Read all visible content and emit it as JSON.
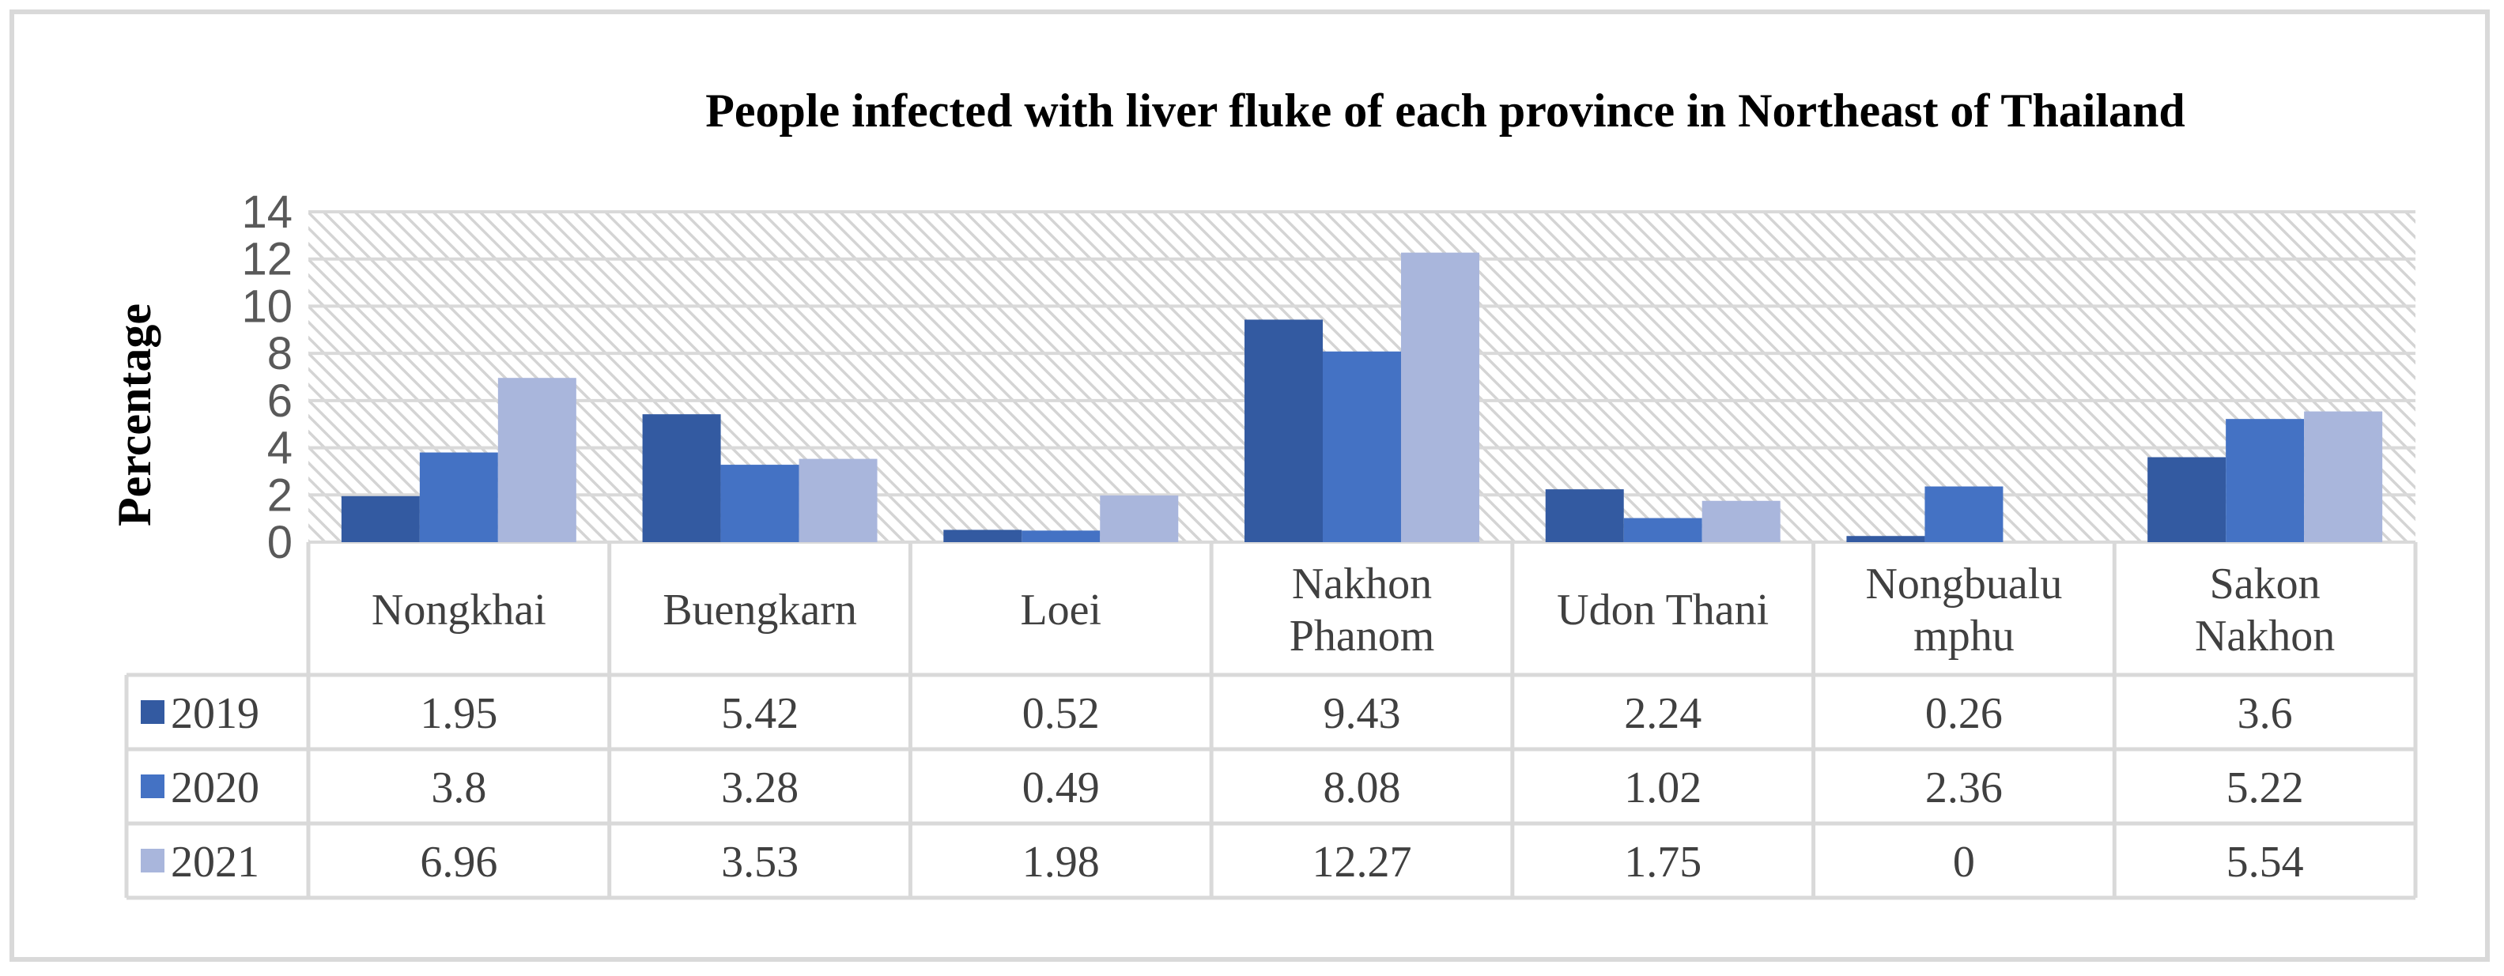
{
  "chart_data": {
    "type": "bar",
    "title": "People infected with liver fluke of each province in Northeast of Thailand",
    "ylabel": "Percentage",
    "xlabel": "",
    "ylim": [
      0,
      14
    ],
    "yticks": [
      "0",
      "2",
      "4",
      "6",
      "8",
      "10",
      "12",
      "14"
    ],
    "grid": true,
    "legend": "data-table",
    "categories": [
      [
        "Nongkhai"
      ],
      [
        "Buengkarn"
      ],
      [
        "Loei"
      ],
      [
        "Nakhon",
        "Phanom"
      ],
      [
        "Udon Thani"
      ],
      [
        "Nongbualu",
        "mphu"
      ],
      [
        "Sakon",
        "Nakhon"
      ]
    ],
    "series": [
      {
        "name": "2019",
        "color": "#335aa1",
        "values": [
          1.95,
          5.42,
          0.52,
          9.43,
          2.24,
          0.26,
          3.6
        ],
        "labels": [
          "1.95",
          "5.42",
          "0.52",
          "9.43",
          "2.24",
          "0.26",
          "3.6"
        ]
      },
      {
        "name": "2020",
        "color": "#4472c4",
        "values": [
          3.8,
          3.28,
          0.49,
          8.08,
          1.02,
          2.36,
          5.22
        ],
        "labels": [
          "3.8",
          "3.28",
          "0.49",
          "8.08",
          "1.02",
          "2.36",
          "5.22"
        ]
      },
      {
        "name": "2021",
        "color": "#a9b6dc",
        "values": [
          6.96,
          3.53,
          1.98,
          12.27,
          1.75,
          0,
          5.54
        ],
        "labels": [
          "6.96",
          "3.53",
          "1.98",
          "12.27",
          "1.75",
          "0",
          "5.54"
        ]
      }
    ]
  }
}
